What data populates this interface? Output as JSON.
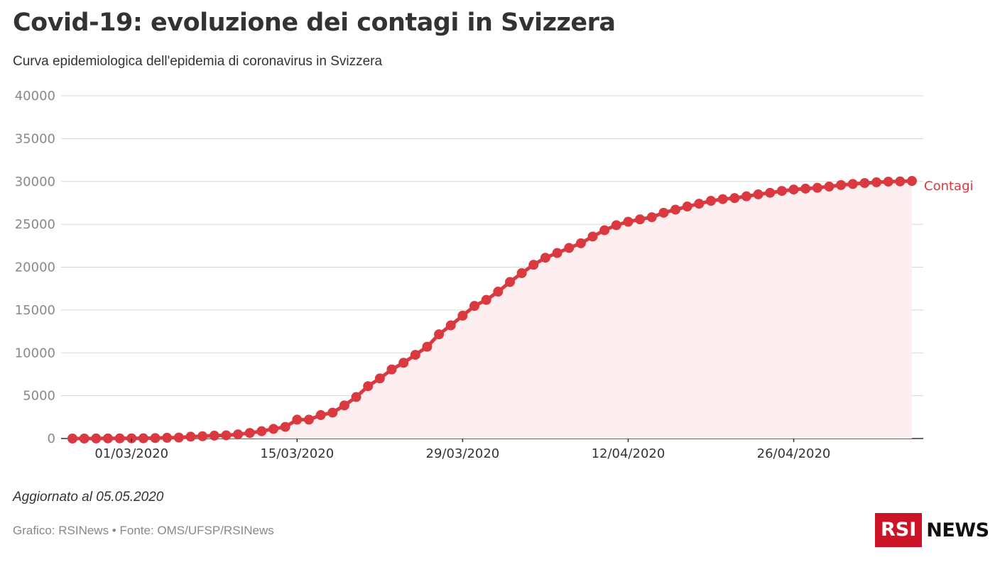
{
  "header": {
    "title": "Covid-19: evoluzione dei contagi in Svizzera",
    "subtitle": "Curva epidemiologica dell'epidemia di coronavirus in Svizzera"
  },
  "footer": {
    "updated": "Aggiornato al 05.05.2020",
    "source": "Grafico: RSINews • Fonte: OMS/UFSP/RSINews"
  },
  "logo": {
    "box_text": "RSI",
    "text": "NEWS",
    "brand_color": "#cc1427"
  },
  "colors": {
    "series": "#d9393f",
    "area": "#fdeef0",
    "grid": "#d6d6d6",
    "axis": "#333333"
  },
  "chart_data": {
    "type": "line",
    "title": "Covid-19: evoluzione dei contagi in Svizzera",
    "subtitle": "Curva epidemiologica dell'epidemia di coronavirus in Svizzera",
    "xlabel": "",
    "ylabel": "",
    "ylim": [
      0,
      40000
    ],
    "y_ticks": [
      0,
      5000,
      10000,
      15000,
      20000,
      25000,
      30000,
      35000,
      40000
    ],
    "x_start": "2020-02-25",
    "x_tick_labels": [
      "01/03/2020",
      "15/03/2020",
      "29/03/2020",
      "12/04/2020",
      "26/04/2020"
    ],
    "x_tick_dates": [
      "2020-03-01",
      "2020-03-15",
      "2020-03-29",
      "2020-04-12",
      "2020-04-26"
    ],
    "grid": true,
    "area_fill": true,
    "series": [
      {
        "name": "Contagi",
        "values": [
          1,
          1,
          8,
          15,
          18,
          24,
          30,
          56,
          90,
          114,
          214,
          268,
          337,
          374,
          491,
          652,
          858,
          1125,
          1359,
          2200,
          2200,
          2742,
          3028,
          3863,
          4840,
          6113,
          7014,
          8060,
          8836,
          9765,
          10714,
          12161,
          13213,
          14336,
          15475,
          16176,
          17139,
          18267,
          19303,
          20278,
          21100,
          21652,
          22242,
          22789,
          23574,
          24308,
          24900,
          25300,
          25580,
          25830,
          26350,
          26710,
          27078,
          27404,
          27740,
          27944,
          28063,
          28268,
          28496,
          28677,
          28894,
          29061,
          29164,
          29264,
          29407,
          29586,
          29705,
          29817,
          29905,
          29981,
          30009,
          30060
        ]
      }
    ]
  }
}
